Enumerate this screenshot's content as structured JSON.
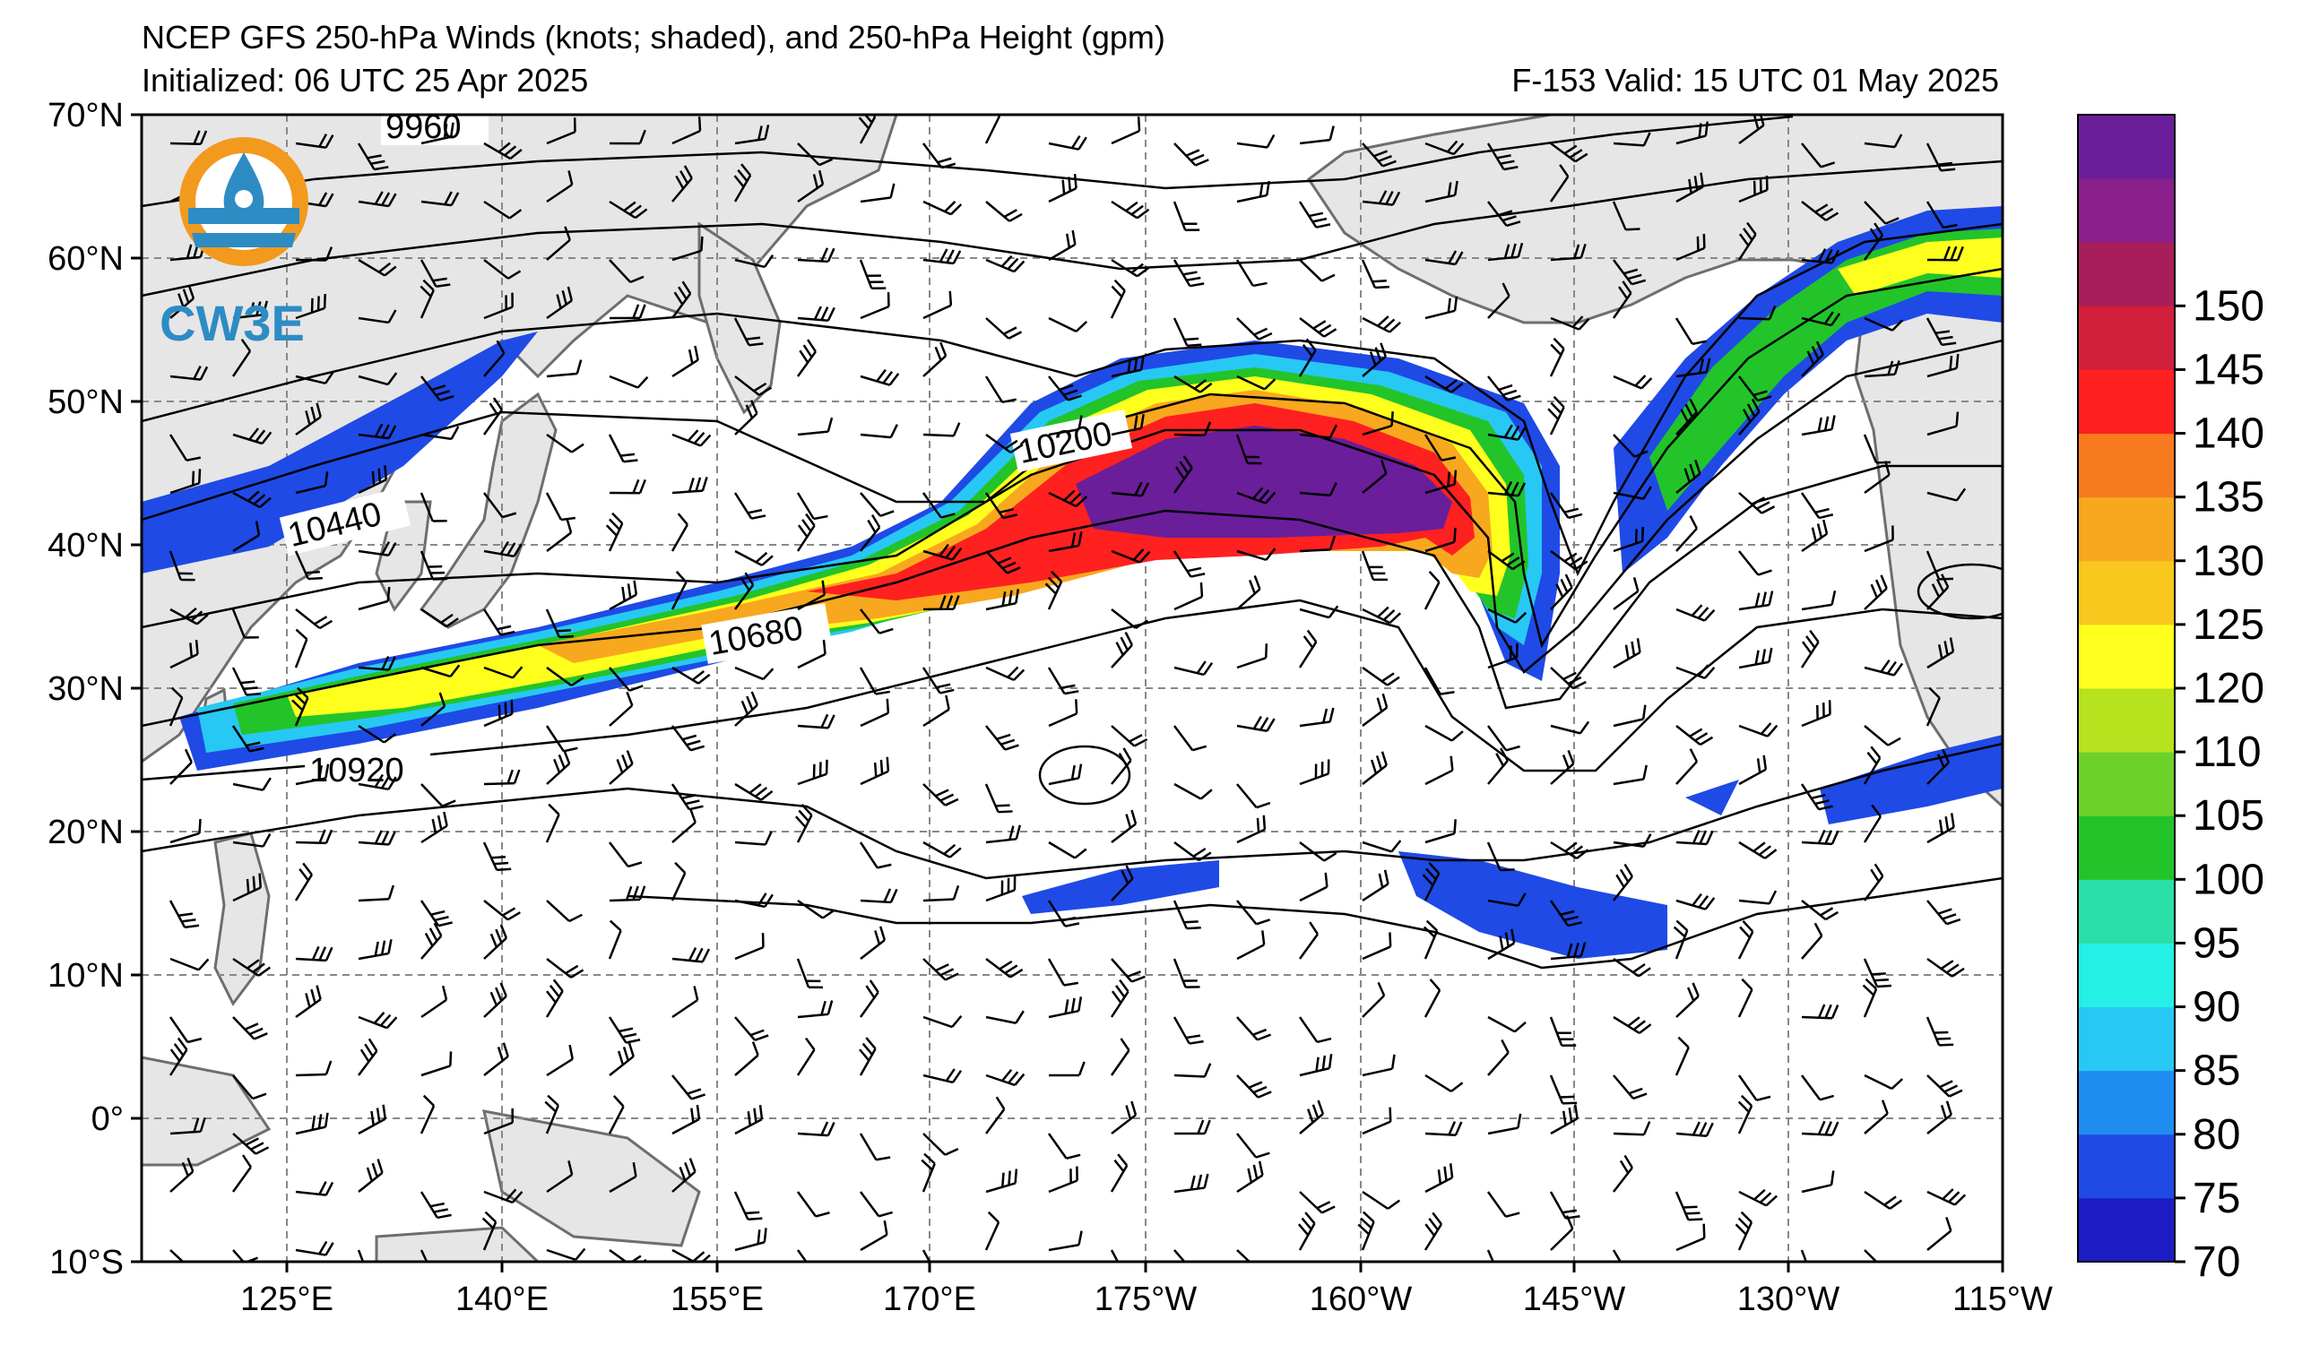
{
  "header": {
    "title": "NCEP GFS 250-hPa Winds (knots; shaded), and 250-hPa Height (gpm)",
    "initialized": "Initialized: 06 UTC 25 Apr 2025",
    "valid": "F-153  Valid: 15 UTC 01 May 2025"
  },
  "logo": {
    "text": "CW3E"
  },
  "map": {
    "lat_labels": [
      "70°N",
      "60°N",
      "50°N",
      "40°N",
      "30°N",
      "20°N",
      "10°N",
      "0°",
      "10°S"
    ],
    "lon_labels": [
      "125°E",
      "140°E",
      "155°E",
      "170°E",
      "175°W",
      "160°W",
      "145°W",
      "130°W",
      "115°W"
    ],
    "contour_labels": [
      "9960",
      "10200",
      "10440",
      "10680",
      "10920"
    ]
  },
  "colorbar": {
    "ticks": [
      "70",
      "75",
      "80",
      "85",
      "90",
      "95",
      "100",
      "105",
      "110",
      "120",
      "125",
      "130",
      "135",
      "140",
      "145",
      "150"
    ],
    "colors": [
      "#1c1cc4",
      "#1f4ae6",
      "#1f8cf0",
      "#27c8f4",
      "#25f0e6",
      "#2ae0a8",
      "#22c42a",
      "#6cd22a",
      "#b6e21e",
      "#ffff1e",
      "#f8c81e",
      "#f8a81e",
      "#f87a1e",
      "#ff2020",
      "#d2203c",
      "#a81e5a",
      "#8a1e8a",
      "#6a1e9a"
    ]
  },
  "colors": {
    "land": "#e6e6e6",
    "coast": "#6e6e6e",
    "grid": "#888888"
  }
}
